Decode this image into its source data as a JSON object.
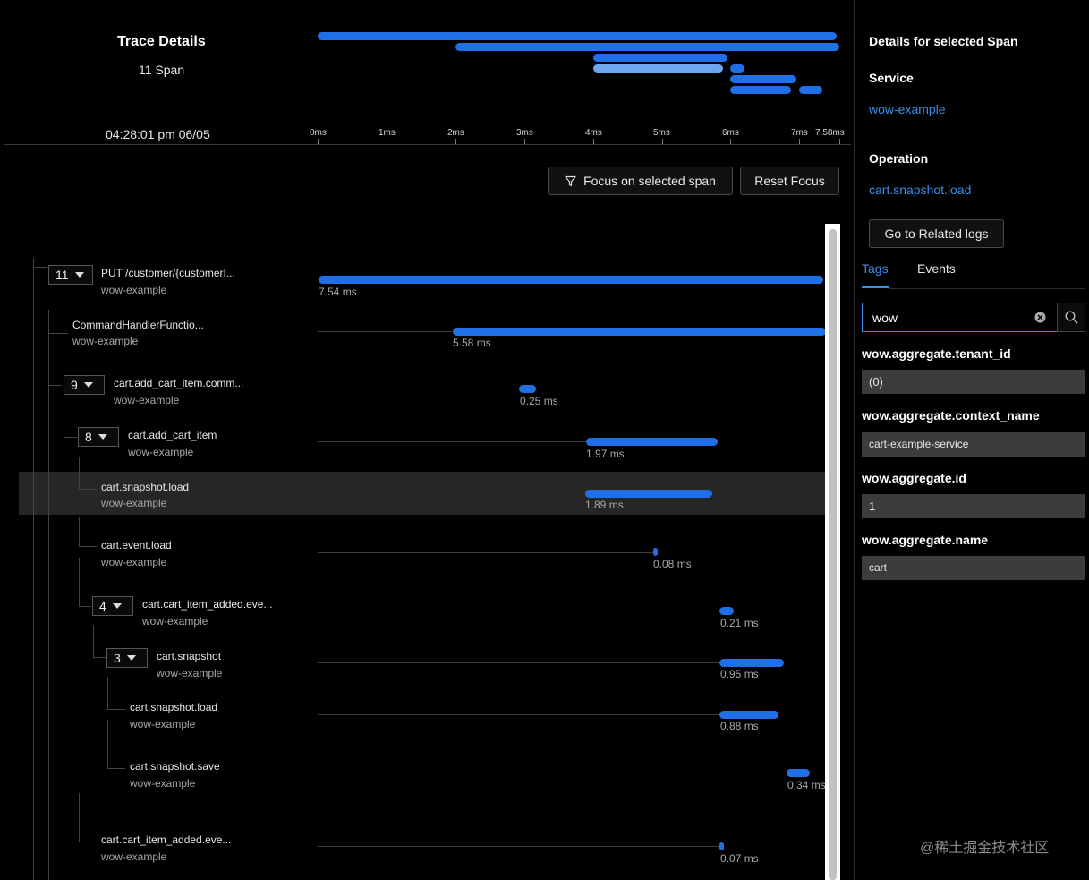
{
  "header": {
    "title": "Trace Details",
    "span_count": "11 Span",
    "timestamp": "04:28:01 pm 06/05"
  },
  "timeline": {
    "ticks": [
      "0ms",
      "1ms",
      "2ms",
      "3ms",
      "4ms",
      "5ms",
      "6ms",
      "7ms",
      "7.58ms"
    ]
  },
  "actions": {
    "focus_label": "Focus on selected span",
    "reset_label": "Reset Focus"
  },
  "spans": [
    {
      "name": "PUT /customer/{customerI...",
      "service": "wow-example",
      "duration": "7.54 ms",
      "child_count": "11",
      "selected": false
    },
    {
      "name": "CommandHandlerFunctio...",
      "service": "wow-example",
      "duration": "5.58 ms",
      "selected": false
    },
    {
      "name": "cart.add_cart_item.comm...",
      "service": "wow-example",
      "duration": "0.25 ms",
      "child_count": "9",
      "selected": false
    },
    {
      "name": "cart.add_cart_item",
      "service": "wow-example",
      "duration": "1.97 ms",
      "child_count": "8",
      "selected": false
    },
    {
      "name": "cart.snapshot.load",
      "service": "wow-example",
      "duration": "1.89 ms",
      "selected": true
    },
    {
      "name": "cart.event.load",
      "service": "wow-example",
      "duration": "0.08 ms",
      "selected": false
    },
    {
      "name": "cart.cart_item_added.eve...",
      "service": "wow-example",
      "duration": "0.21 ms",
      "child_count": "4",
      "selected": false
    },
    {
      "name": "cart.snapshot",
      "service": "wow-example",
      "duration": "0.95 ms",
      "child_count": "3",
      "selected": false
    },
    {
      "name": "cart.snapshot.load",
      "service": "wow-example",
      "duration": "0.88 ms",
      "selected": false
    },
    {
      "name": "cart.snapshot.save",
      "service": "wow-example",
      "duration": "0.34 ms",
      "selected": false
    },
    {
      "name": "cart.cart_item_added.eve...",
      "service": "wow-example",
      "duration": "0.07 ms",
      "selected": false
    }
  ],
  "details": {
    "heading": "Details for selected Span",
    "service_label": "Service",
    "service_value": "wow-example",
    "operation_label": "Operation",
    "operation_value": "cart.snapshot.load",
    "related_logs_label": "Go to Related logs",
    "tabs": [
      {
        "label": "Tags",
        "active": true
      },
      {
        "label": "Events",
        "active": false
      }
    ],
    "search_value": "wow",
    "tags": [
      {
        "key": "wow.aggregate.tenant_id",
        "value": "(0)"
      },
      {
        "key": "wow.aggregate.context_name",
        "value": "cart-example-service"
      },
      {
        "key": "wow.aggregate.id",
        "value": "1"
      },
      {
        "key": "wow.aggregate.name",
        "value": "cart"
      }
    ]
  },
  "watermark": "@稀土掘金技术社区",
  "colors": {
    "background": "#000000",
    "bar": "#1f6fe6",
    "bar_light": "#6ea6f2",
    "link": "#3b8ee8",
    "selected_row": "#262626"
  }
}
